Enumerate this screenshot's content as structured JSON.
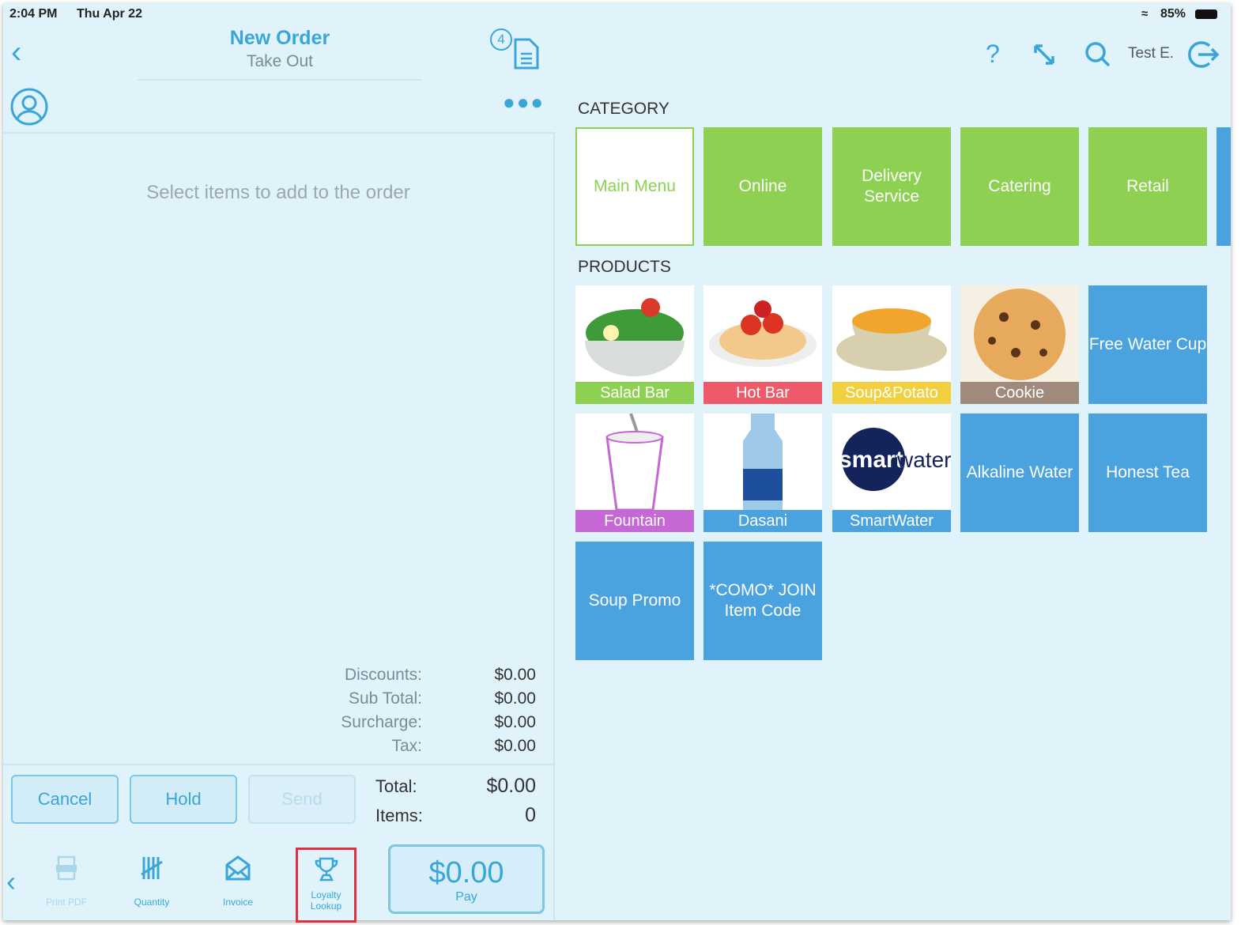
{
  "status_bar": {
    "time": "2:04 PM",
    "date": "Thu Apr 22",
    "battery": "85%"
  },
  "header": {
    "title": "New Order",
    "subtitle": "Take Out",
    "orders_badge": "4",
    "user": "Test E."
  },
  "order": {
    "empty_message": "Select items to add to the order",
    "summary": [
      {
        "label": "Discounts:",
        "value": "$0.00"
      },
      {
        "label": "Sub Total:",
        "value": "$0.00"
      },
      {
        "label": "Surcharge:",
        "value": "$0.00"
      },
      {
        "label": "Tax:",
        "value": "$0.00"
      }
    ],
    "total_label": "Total:",
    "total": "$0.00",
    "items_label": "Items:",
    "items": "0"
  },
  "buttons": {
    "cancel": "Cancel",
    "hold": "Hold",
    "send": "Send",
    "pay_amount": "$0.00",
    "pay": "Pay"
  },
  "toolbar": [
    {
      "label": "Print PDF",
      "icon": "pdf-icon"
    },
    {
      "label": "Quantity",
      "icon": "tally-icon"
    },
    {
      "label": "Invoice",
      "icon": "envelope-icon"
    },
    {
      "label": "Loyalty Lookup",
      "icon": "trophy-icon"
    }
  ],
  "category_heading": "CATEGORY",
  "categories": [
    "Main Menu",
    "Online",
    "Delivery Service",
    "Catering",
    "Retail"
  ],
  "products_heading": "PRODUCTS",
  "products": [
    {
      "name": "Salad Bar",
      "color": "#8ed152"
    },
    {
      "name": "Hot Bar",
      "color": "#ee5a6a"
    },
    {
      "name": "Soup&Potato",
      "color": "#f2cf3e"
    },
    {
      "name": "Cookie",
      "color": "#a08a7c"
    },
    {
      "name": "Free Water Cup",
      "color": "#4aa3df"
    },
    {
      "name": "Fountain",
      "color": "#c667d6"
    },
    {
      "name": "Dasani",
      "color": "#4aa3df"
    },
    {
      "name": "SmartWater",
      "color": "#4aa3df",
      "logo": "smartwater"
    },
    {
      "name": "Alkaline Water",
      "color": "#4aa3df"
    },
    {
      "name": "Honest Tea",
      "color": "#4aa3df"
    },
    {
      "name": "Soup Promo",
      "color": "#4aa3df"
    },
    {
      "name": "*COMO* JOIN Item Code",
      "color": "#4aa3df"
    }
  ],
  "colors": {
    "accent": "#3aa6d8",
    "category_green": "#8ed152",
    "product_blue": "#4aa3df",
    "highlight": "#e03040"
  }
}
